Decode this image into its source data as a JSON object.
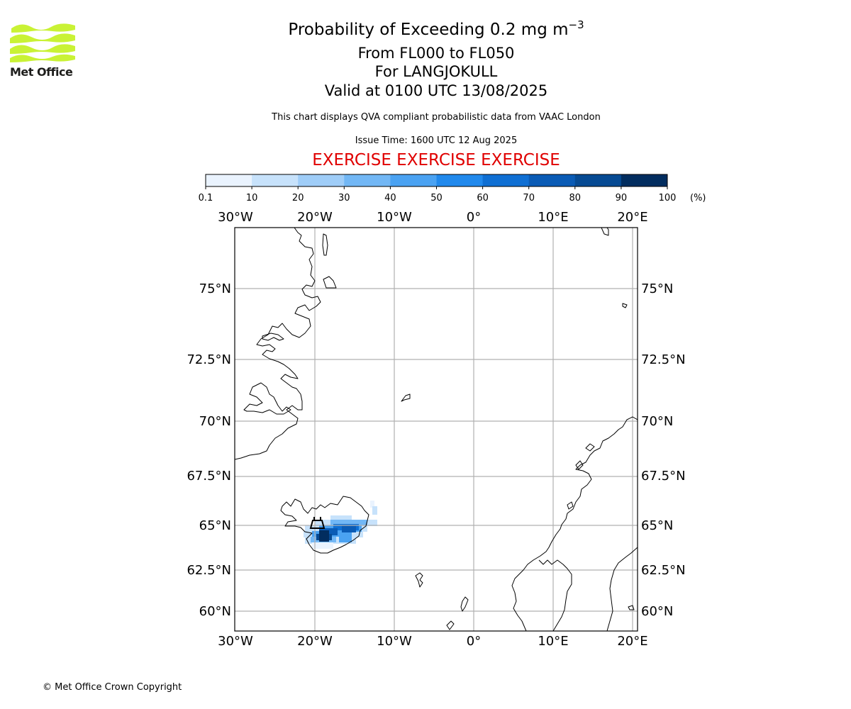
{
  "branding": {
    "logo_text": "Met Office",
    "logo_color": "#c9f235"
  },
  "header": {
    "title_main": "Probability of Exceeding 0.2 mg m",
    "title_unit_exp": "−3",
    "flight_levels": "From FL000 to FL050",
    "volcano": "For LANGJOKULL",
    "valid_time": "Valid at 0100 UTC 13/08/2025",
    "description": "This chart displays QVA compliant probabilistic data from VAAC London",
    "issue_time": "Issue Time: 1600 UTC 12 Aug 2025",
    "exercise_banner": "EXERCISE EXERCISE EXERCISE",
    "exercise_color": "#e00000"
  },
  "colorbar": {
    "tick_labels": [
      "0.1",
      "10",
      "20",
      "30",
      "40",
      "50",
      "60",
      "70",
      "80",
      "90",
      "100"
    ],
    "unit": "(%)",
    "colors": [
      "#eaf3fe",
      "#c7e2fb",
      "#9fcdf8",
      "#72b7f5",
      "#4aa2f2",
      "#2189ec",
      "#0f6fd3",
      "#0a5bb5",
      "#064a93",
      "#022d5f"
    ]
  },
  "map": {
    "lon_labels": [
      "30°W",
      "20°W",
      "10°W",
      "0°",
      "10°E",
      "20°E"
    ],
    "lat_labels": [
      "75°N",
      "72.5°N",
      "70°N",
      "67.5°N",
      "65°N",
      "62.5°N",
      "60°N"
    ],
    "gridline_color": "#b0b0b0",
    "volcano_marker": "volcano-triangle-icon"
  },
  "footer": {
    "copyright": "© Met Office Crown Copyright"
  }
}
